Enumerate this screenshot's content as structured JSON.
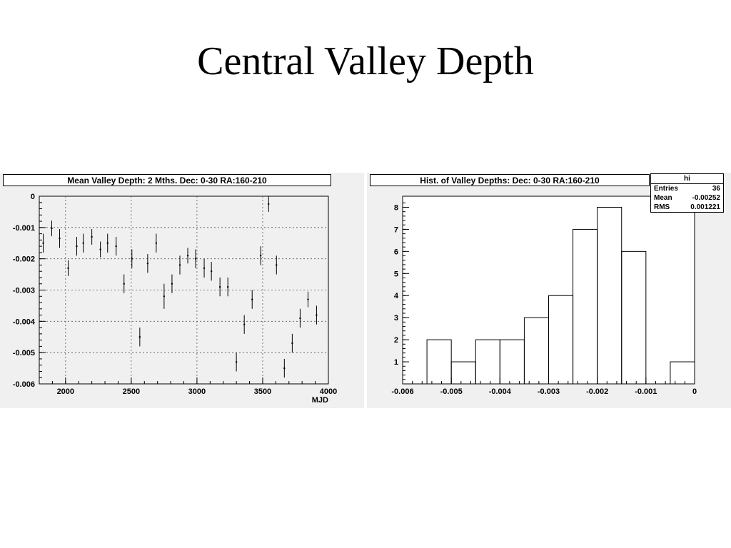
{
  "slide": {
    "title": "Central Valley Depth"
  },
  "chart_data": [
    {
      "type": "scatter",
      "title": "Mean Valley Depth: 2 Mths. Dec: 0-30 RA:160-210",
      "xlabel": "MJD",
      "ylabel": "",
      "xlim": [
        1800,
        4000
      ],
      "ylim": [
        -0.006,
        0
      ],
      "grid": true,
      "x_ticks": [
        "2000",
        "2500",
        "3000",
        "3500",
        "4000"
      ],
      "y_ticks": [
        "0",
        "-0.001",
        "-0.002",
        "-0.003",
        "-0.004",
        "-0.005",
        "-0.006"
      ],
      "points": [
        {
          "x": 1830,
          "y": -0.0015,
          "err": 0.0003
        },
        {
          "x": 1895,
          "y": -0.00103,
          "err": 0.00025
        },
        {
          "x": 1955,
          "y": -0.00135,
          "err": 0.0003
        },
        {
          "x": 2020,
          "y": -0.0023,
          "err": 0.00025
        },
        {
          "x": 2085,
          "y": -0.0016,
          "err": 0.0003
        },
        {
          "x": 2135,
          "y": -0.0015,
          "err": 0.0003
        },
        {
          "x": 2200,
          "y": -0.0013,
          "err": 0.00025
        },
        {
          "x": 2265,
          "y": -0.0017,
          "err": 0.00025
        },
        {
          "x": 2320,
          "y": -0.0015,
          "err": 0.0003
        },
        {
          "x": 2385,
          "y": -0.0016,
          "err": 0.0003
        },
        {
          "x": 2445,
          "y": -0.0028,
          "err": 0.0003
        },
        {
          "x": 2505,
          "y": -0.002,
          "err": 0.0003
        },
        {
          "x": 2565,
          "y": -0.0045,
          "err": 0.0003
        },
        {
          "x": 2625,
          "y": -0.00215,
          "err": 0.0003
        },
        {
          "x": 2690,
          "y": -0.0015,
          "err": 0.0003
        },
        {
          "x": 2750,
          "y": -0.0032,
          "err": 0.0004
        },
        {
          "x": 2810,
          "y": -0.0028,
          "err": 0.0003
        },
        {
          "x": 2870,
          "y": -0.0022,
          "err": 0.0003
        },
        {
          "x": 2930,
          "y": -0.0019,
          "err": 0.00025
        },
        {
          "x": 2990,
          "y": -0.002,
          "err": 0.0003
        },
        {
          "x": 3055,
          "y": -0.0023,
          "err": 0.0003
        },
        {
          "x": 3110,
          "y": -0.0024,
          "err": 0.0003
        },
        {
          "x": 3175,
          "y": -0.0029,
          "err": 0.0003
        },
        {
          "x": 3235,
          "y": -0.0029,
          "err": 0.0003
        },
        {
          "x": 3300,
          "y": -0.0053,
          "err": 0.0003
        },
        {
          "x": 3360,
          "y": -0.0041,
          "err": 0.0003
        },
        {
          "x": 3420,
          "y": -0.0033,
          "err": 0.0003
        },
        {
          "x": 3485,
          "y": -0.0019,
          "err": 0.0003
        },
        {
          "x": 3545,
          "y": -0.00025,
          "err": 0.00025
        },
        {
          "x": 3605,
          "y": -0.0022,
          "err": 0.0003
        },
        {
          "x": 3665,
          "y": -0.0055,
          "err": 0.0003
        },
        {
          "x": 3725,
          "y": -0.0047,
          "err": 0.0003
        },
        {
          "x": 3785,
          "y": -0.0039,
          "err": 0.0003
        },
        {
          "x": 3845,
          "y": -0.0033,
          "err": 0.00025
        },
        {
          "x": 3910,
          "y": -0.0038,
          "err": 0.0003
        }
      ]
    },
    {
      "type": "bar",
      "subtype": "histogram-step",
      "title": "Hist. of Valley Depths:  Dec: 0-30 RA:160-210",
      "xlabel": "",
      "ylabel": "",
      "xlim": [
        -0.006,
        0
      ],
      "ylim": [
        0,
        8.5
      ],
      "grid": false,
      "x_ticks": [
        "-0.006",
        "-0.005",
        "-0.004",
        "-0.003",
        "-0.002",
        "-0.001",
        "0"
      ],
      "y_ticks": [
        "1",
        "2",
        "3",
        "4",
        "5",
        "6",
        "7",
        "8"
      ],
      "bin_edges": [
        -0.0055,
        -0.005,
        -0.0045,
        -0.004,
        -0.0035,
        -0.003,
        -0.0025,
        -0.002,
        -0.0015,
        -0.001,
        -0.0005,
        0
      ],
      "counts": [
        2,
        1,
        2,
        2,
        3,
        4,
        7,
        8,
        6,
        0,
        1
      ],
      "stats": {
        "name": "hi",
        "entries_label": "Entries",
        "entries": "36",
        "mean_label": "Mean",
        "mean": "-0.00252",
        "rms_label": "RMS",
        "rms": "0.001221"
      }
    }
  ]
}
